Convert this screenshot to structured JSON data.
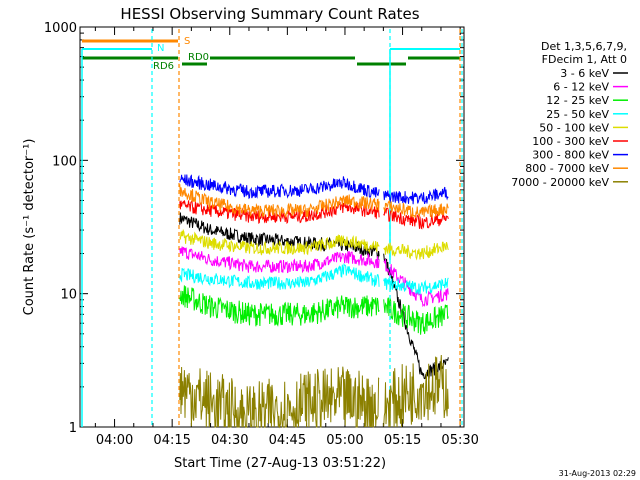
{
  "chart_data": {
    "type": "line",
    "title": "HESSI Observing Summary Count Rates",
    "xlabel": "Start Time (27-Aug-13 03:51:22)",
    "ylabel": "Count Rate (s⁻¹ detector⁻¹)",
    "y_scale": "log",
    "ylim": [
      1,
      1000
    ],
    "xlim_minutes_after_0351": [
      0,
      100
    ],
    "x_ticks": [
      "04:00",
      "04:15",
      "04:30",
      "04:45",
      "05:00",
      "05:15",
      "05:30"
    ],
    "y_ticks": [
      "1",
      "10",
      "100",
      "1000"
    ],
    "legend_header": [
      "Det 1,3,5,6,7,9,",
      "FDecim 1, Att 0"
    ],
    "legend_position": "right",
    "series": [
      {
        "name": "3 - 6 keV",
        "color": "#000000",
        "x": [
          "04:17",
          "04:25",
          "04:35",
          "04:50",
          "05:00",
          "05:10",
          "05:20",
          "05:27"
        ],
        "values": [
          37,
          30,
          26,
          24,
          23,
          20,
          2.5,
          3
        ]
      },
      {
        "name": "6 - 12 keV",
        "color": "#ff00ff",
        "x": [
          "04:17",
          "04:25",
          "04:35",
          "04:50",
          "05:00",
          "05:10",
          "05:20",
          "05:27"
        ],
        "values": [
          21,
          18,
          16,
          16,
          19,
          17,
          9,
          10
        ]
      },
      {
        "name": "12 - 25 keV",
        "color": "#00ee00",
        "x": [
          "04:17",
          "04:25",
          "04:35",
          "04:50",
          "05:00",
          "05:10",
          "05:20",
          "05:27"
        ],
        "values": [
          10,
          8,
          7,
          7,
          8,
          8,
          6,
          7
        ]
      },
      {
        "name": "25 - 50 keV",
        "color": "#00ffff",
        "x": [
          "04:17",
          "04:25",
          "04:35",
          "04:50",
          "05:00",
          "05:10",
          "05:20",
          "05:27"
        ],
        "values": [
          14,
          13,
          12,
          12,
          15,
          12,
          11,
          12
        ]
      },
      {
        "name": "50 - 100 keV",
        "color": "#dddd00",
        "x": [
          "04:17",
          "04:25",
          "04:35",
          "04:50",
          "05:00",
          "05:10",
          "05:20",
          "05:27"
        ],
        "values": [
          27,
          24,
          22,
          22,
          25,
          22,
          20,
          23
        ]
      },
      {
        "name": "100 - 300 keV",
        "color": "#ff0000",
        "x": [
          "04:17",
          "04:25",
          "04:35",
          "04:50",
          "05:00",
          "05:10",
          "05:20",
          "05:27"
        ],
        "values": [
          46,
          42,
          38,
          38,
          45,
          40,
          34,
          37
        ]
      },
      {
        "name": "300 - 800 keV",
        "color": "#0000ff",
        "x": [
          "04:17",
          "04:25",
          "04:35",
          "04:50",
          "05:00",
          "05:10",
          "05:20",
          "05:27"
        ],
        "values": [
          72,
          65,
          58,
          60,
          68,
          54,
          52,
          58
        ]
      },
      {
        "name": "800 - 7000 keV",
        "color": "#ff8800",
        "x": [
          "04:17",
          "04:25",
          "04:35",
          "04:50",
          "05:00",
          "05:10",
          "05:20",
          "05:27"
        ],
        "values": [
          60,
          48,
          42,
          42,
          50,
          46,
          40,
          44
        ]
      },
      {
        "name": "7000 - 20000 keV",
        "color": "#8b8000",
        "x": [
          "04:17",
          "04:25",
          "04:35",
          "04:50",
          "05:00",
          "05:10",
          "05:20",
          "05:27"
        ],
        "values": [
          2,
          1.5,
          1.2,
          1.5,
          1.6,
          1.4,
          2,
          2
        ]
      }
    ],
    "flags": [
      {
        "label": "S",
        "color": "#ff8800"
      },
      {
        "label": "N",
        "color": "#00ffff"
      },
      {
        "label": "RD6",
        "color": "#008000"
      },
      {
        "label": "RD0",
        "color": "#008000"
      }
    ],
    "footer": "31-Aug-2013 02:29"
  }
}
